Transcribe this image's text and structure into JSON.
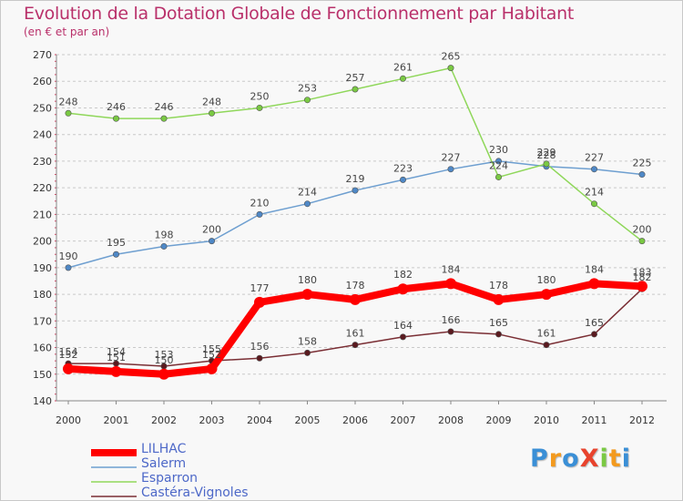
{
  "header": {
    "title": "Evolution de la Dotation Globale de Fonctionnement par Habitant",
    "subtitle": "(en € et par an)"
  },
  "logo": {
    "text": "ProXiti"
  },
  "chart_data": {
    "type": "line",
    "title": "Evolution de la Dotation Globale de Fonctionnement par Habitant",
    "subtitle": "(en € et par an)",
    "xlabel": "",
    "ylabel": "",
    "x": [
      "2000",
      "2001",
      "2002",
      "2003",
      "2004",
      "2005",
      "2006",
      "2007",
      "2008",
      "2009",
      "2010",
      "2011",
      "2012"
    ],
    "ylim": [
      140,
      270
    ],
    "yticks": [
      140,
      150,
      160,
      170,
      180,
      190,
      200,
      210,
      220,
      230,
      240,
      250,
      260,
      270
    ],
    "grid": "horizontal dashed",
    "legend": "bottom-left",
    "series": [
      {
        "name": "LILHAC",
        "color": "#ff0000",
        "marker": "#ff0000",
        "values": [
          152,
          151,
          150,
          152,
          177,
          180,
          178,
          182,
          184,
          178,
          180,
          184,
          183
        ]
      },
      {
        "name": "Salerm",
        "color": "#6e9fd0",
        "marker": "#4f88c6",
        "values": [
          190,
          195,
          198,
          200,
          210,
          214,
          219,
          223,
          227,
          230,
          228,
          227,
          225
        ]
      },
      {
        "name": "Esparron",
        "color": "#8fd75a",
        "marker": "#7ac943",
        "values": [
          248,
          246,
          246,
          248,
          250,
          253,
          257,
          261,
          265,
          224,
          229,
          214,
          200
        ]
      },
      {
        "name": "Castéra-Vignoles",
        "color": "#7a2e34",
        "marker": "#5a1a1f",
        "values": [
          154,
          154,
          153,
          155,
          156,
          158,
          161,
          164,
          166,
          165,
          161,
          165,
          182
        ]
      }
    ]
  }
}
